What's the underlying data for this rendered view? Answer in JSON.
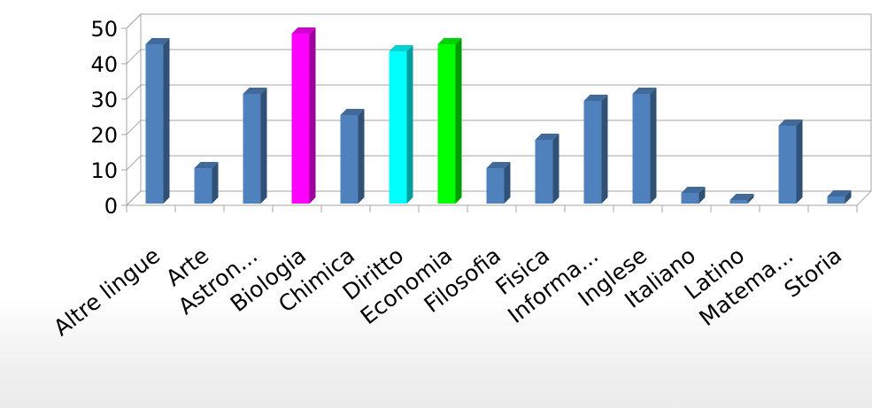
{
  "chart_data": {
    "type": "bar",
    "categories": [
      "Altre lingue",
      "Arte",
      "Astron...",
      "Biologia",
      "Chimica",
      "Diritto",
      "Economia",
      "Filosofia",
      "Fisica",
      "Informa...",
      "Inglese",
      "Italiano",
      "Latino",
      "Matema...",
      "Storia"
    ],
    "values": [
      45,
      10,
      31,
      48,
      25,
      43,
      45,
      10,
      18,
      29,
      31,
      3,
      1,
      22,
      2
    ],
    "colors": [
      "#4F81BD",
      "#4F81BD",
      "#4F81BD",
      "#FF00FF",
      "#4F81BD",
      "#00FFFF",
      "#00FF00",
      "#4F81BD",
      "#4F81BD",
      "#4F81BD",
      "#4F81BD",
      "#4F81BD",
      "#4F81BD",
      "#4F81BD",
      "#4F81BD"
    ],
    "yticks": [
      "0",
      "10",
      "20",
      "30",
      "40",
      "50"
    ],
    "ylim": [
      0,
      50
    ],
    "grid": true,
    "style": "3d-column"
  }
}
